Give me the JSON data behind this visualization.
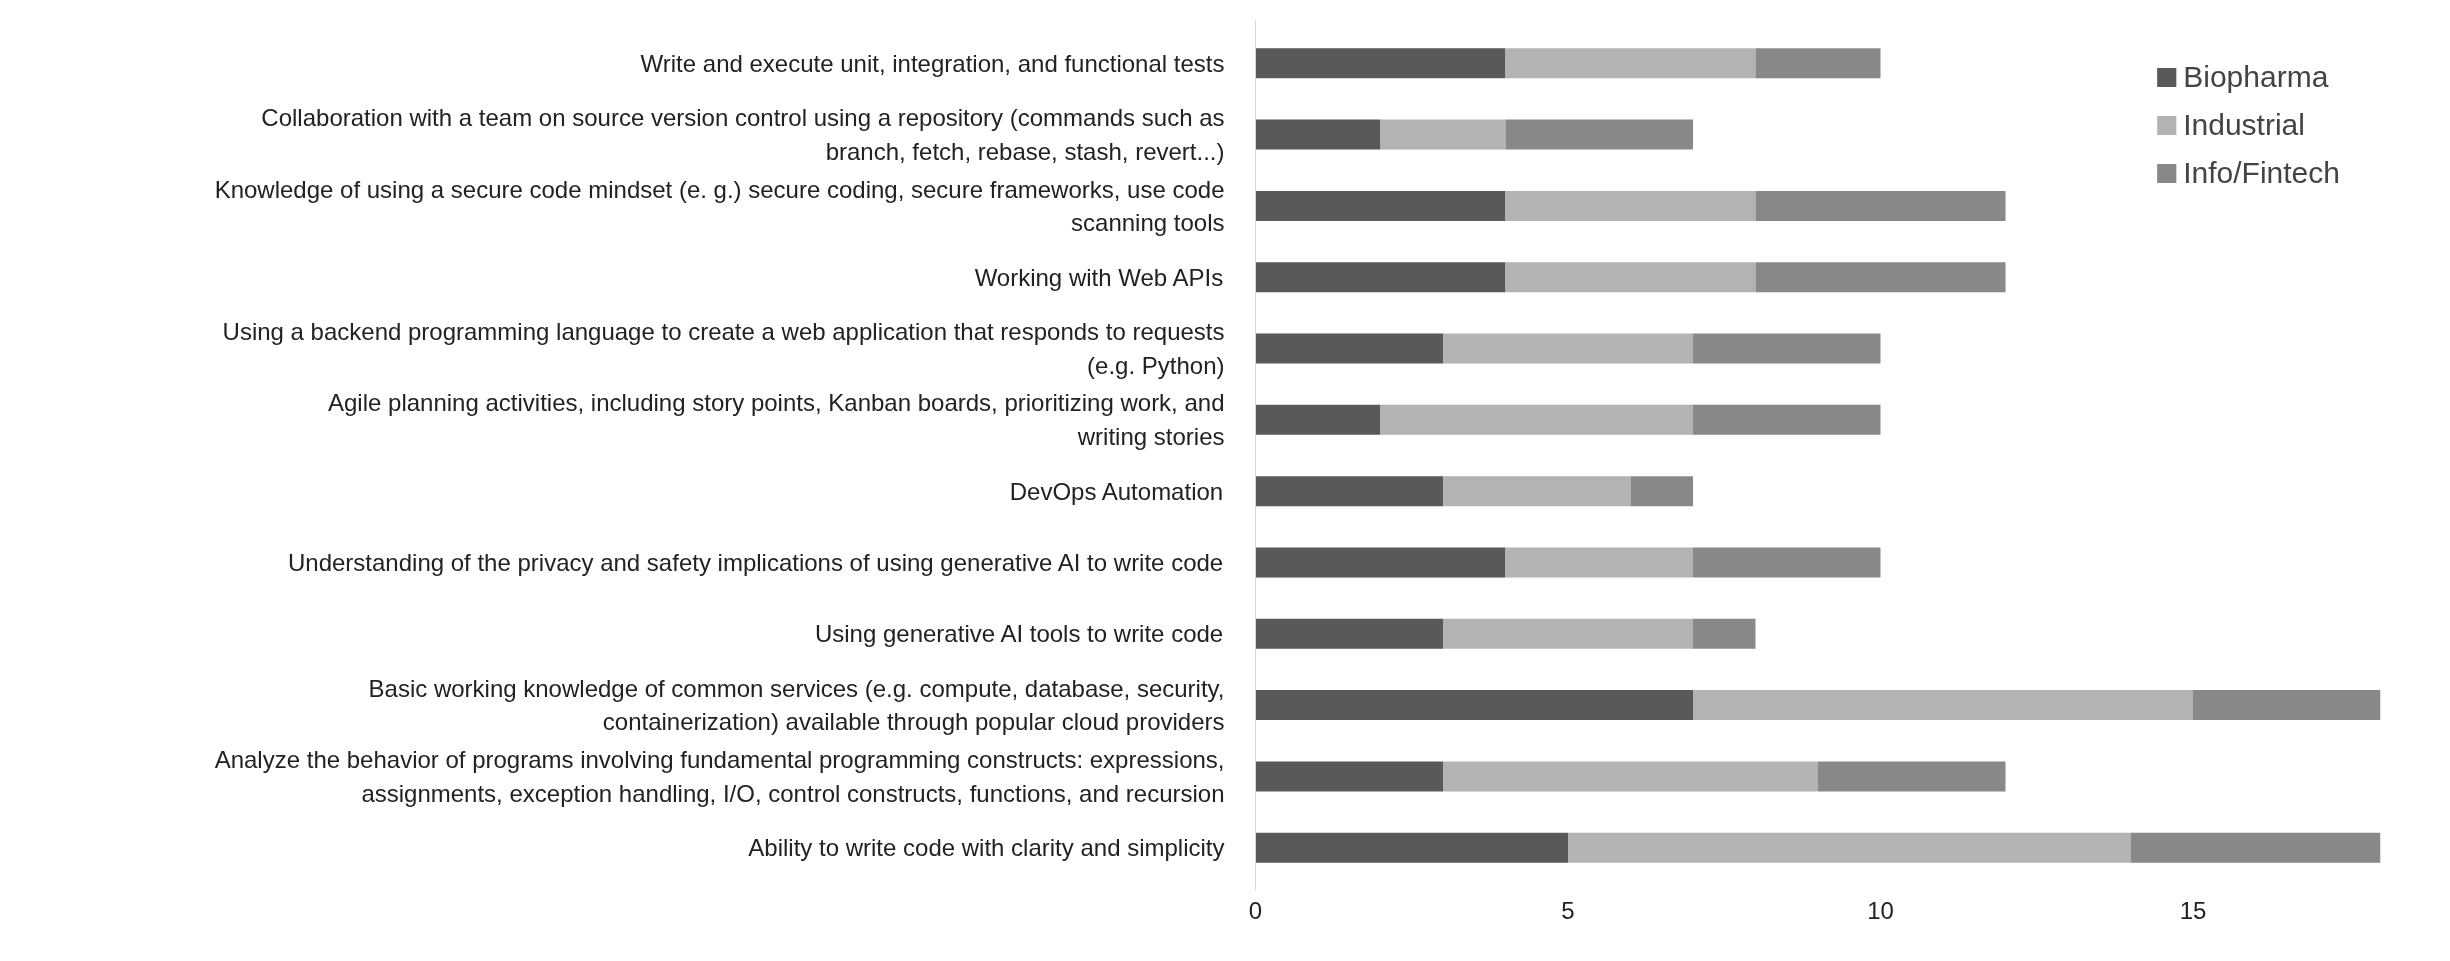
{
  "chart_data": {
    "type": "bar",
    "orientation": "horizontal",
    "stacked": true,
    "categories": [
      "Write and execute unit, integration, and functional tests",
      "Collaboration with a team on source version control using a repository (commands such as branch, fetch, rebase, stash, revert...)",
      "Knowledge of using a secure code mindset (e. g.) secure coding, secure frameworks, use code scanning tools",
      "Working with Web APIs",
      "Using a backend programming language to create a web application that responds to requests (e.g. Python)",
      "Agile planning activities, including story points, Kanban boards, prioritizing work, and writing stories",
      "DevOps Automation",
      "Understanding of the privacy and safety implications of using generative AI to write code",
      "Using generative AI tools to write code",
      "Basic working knowledge of common services (e.g. compute, database, security, containerization) available through popular cloud providers",
      "Analyze the behavior of programs involving fundamental programming constructs: expressions, assignments, exception handling, I/O, control constructs, functions, and recursion",
      "Ability to write code with clarity and simplicity"
    ],
    "series": [
      {
        "name": "Biopharma",
        "color": "#595959",
        "values": [
          4,
          2,
          4,
          4,
          3,
          2,
          3,
          4,
          3,
          7,
          3,
          5
        ]
      },
      {
        "name": "Industrial",
        "color": "#b3b3b3",
        "values": [
          4,
          2,
          4,
          4,
          4,
          5,
          3,
          3,
          4,
          8,
          6,
          9
        ]
      },
      {
        "name": "Info/Fintech",
        "color": "#888888",
        "values": [
          2,
          3,
          4,
          4,
          3,
          3,
          1,
          3,
          1,
          3,
          3,
          4
        ]
      }
    ],
    "xlim": [
      0,
      18
    ],
    "xticks": [
      0,
      5,
      10,
      15
    ],
    "grid": false,
    "legend": "top right"
  }
}
